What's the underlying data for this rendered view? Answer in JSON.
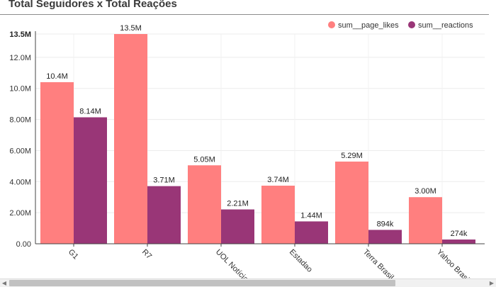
{
  "panel": {
    "title": "Total Seguidores x Total Reações"
  },
  "chart_data": {
    "type": "bar",
    "categories": [
      "G1",
      "R7",
      "UOL Notícias",
      "Estadao",
      "Terra Brasil",
      "Yahoo Brasil"
    ],
    "series": [
      {
        "name": "sum__page_likes",
        "color": "#ff7f7f",
        "values": [
          10400000,
          13500000,
          5050000,
          3740000,
          5290000,
          3000000
        ],
        "labels": [
          "10.4M",
          "13.5M",
          "5.05M",
          "3.74M",
          "5.29M",
          "3.00M"
        ]
      },
      {
        "name": "sum__reactions",
        "color": "#993677",
        "values": [
          8140000,
          3710000,
          2210000,
          1440000,
          894000,
          274000
        ],
        "labels": [
          "8.14M",
          "3.71M",
          "2.21M",
          "1.44M",
          "894k",
          "274k"
        ]
      }
    ],
    "ylim": [
      0,
      13500000
    ],
    "yticks": [
      {
        "value": 0,
        "label": "0.00"
      },
      {
        "value": 2000000,
        "label": "2.00M"
      },
      {
        "value": 4000000,
        "label": "4.00M"
      },
      {
        "value": 6000000,
        "label": "6.00M"
      },
      {
        "value": 8000000,
        "label": "8.00M"
      },
      {
        "value": 10000000,
        "label": "10.0M"
      },
      {
        "value": 12000000,
        "label": "12.0M"
      },
      {
        "value": 13500000,
        "label": "13.5M",
        "bold": true
      }
    ],
    "xlabel": "",
    "ylabel": "",
    "grid": true,
    "legend_position": "top-right",
    "x_tick_rotation": 45
  }
}
